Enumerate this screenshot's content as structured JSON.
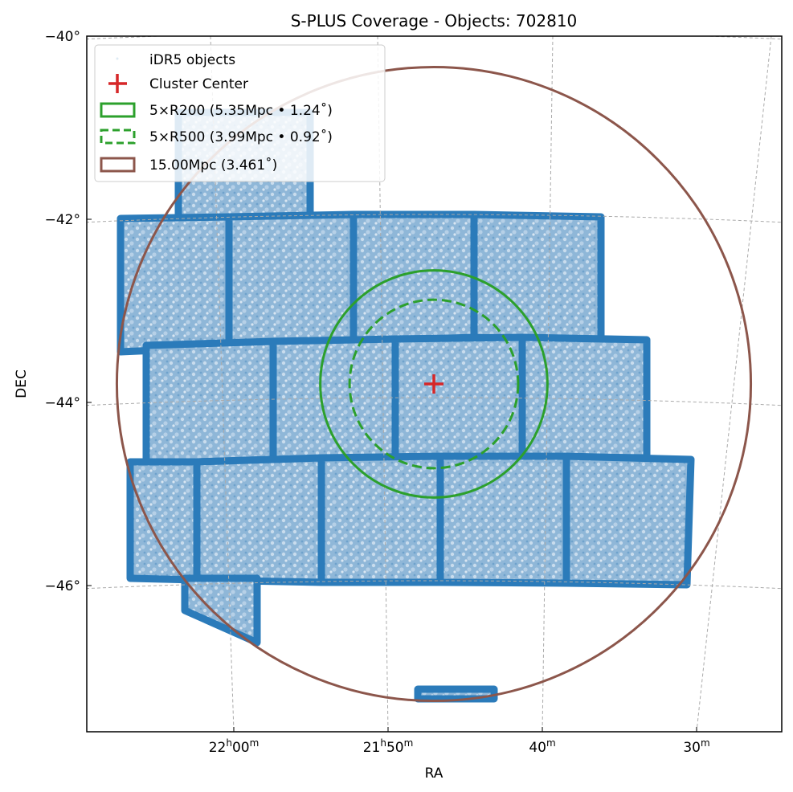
{
  "chart_data": {
    "type": "scatter",
    "title": "S-PLUS Coverage - Objects: 702810",
    "xlabel": "RA",
    "ylabel": "DEC",
    "object_count": 702810,
    "x_ticks": [
      {
        "h": "22",
        "m": "00",
        "hsup": "h",
        "msup": "m"
      },
      {
        "h": "21",
        "m": "50",
        "hsup": "h",
        "msup": "m"
      },
      {
        "h": "",
        "m": "40",
        "hsup": "",
        "msup": "m"
      },
      {
        "h": "",
        "m": "30",
        "hsup": "",
        "msup": "m"
      }
    ],
    "x_tick_minutes": [
      0,
      -10,
      -20,
      -30
    ],
    "y_ticks": [
      "−40°",
      "−42°",
      "−44°",
      "−46°"
    ],
    "y_tick_values": [
      -40,
      -42,
      -44,
      -46
    ],
    "grid": true,
    "legend_position": "top-left",
    "center": {
      "ra_hours": 21.78,
      "dec_deg": -43.8
    },
    "legend": [
      {
        "label": "iDR5 objects",
        "kind": "points",
        "color": "#1f77b4"
      },
      {
        "label": "Cluster Center",
        "kind": "plus",
        "color": "#d62728"
      },
      {
        "label": "5×R200 (5.35Mpc • 1.24˚)",
        "kind": "circle",
        "radius_deg": 1.24,
        "radius_mpc": 5.35,
        "color": "#2ca02c",
        "dashed": false
      },
      {
        "label": "5×R500 (3.99Mpc • 0.92˚)",
        "kind": "circle",
        "radius_deg": 0.92,
        "radius_mpc": 3.99,
        "color": "#2ca02c",
        "dashed": true
      },
      {
        "label": "15.00Mpc (3.461˚)",
        "kind": "circle",
        "radius_deg": 3.461,
        "radius_mpc": 15.0,
        "color": "#8c564b",
        "dashed": false
      }
    ]
  }
}
